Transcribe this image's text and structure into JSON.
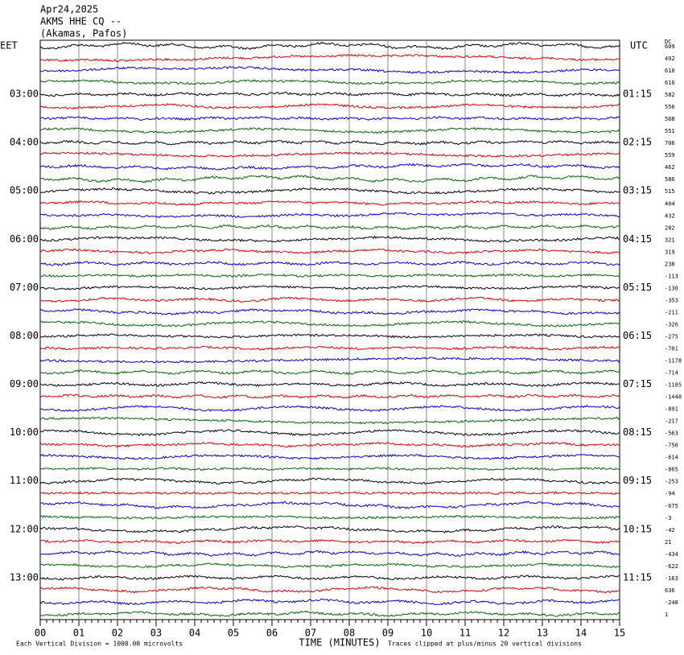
{
  "header": {
    "date": "Apr24,2025",
    "station": "AKMS HHE CQ --",
    "location": "(Akamas, Pafos)"
  },
  "left_axis": {
    "title": "EET",
    "labels": [
      "03:00",
      "04:00",
      "05:00",
      "06:00",
      "07:00",
      "08:00",
      "09:00",
      "10:00",
      "11:00",
      "12:00",
      "13:00"
    ]
  },
  "right_axis": {
    "title": "UTC",
    "labels": [
      "01:15",
      "02:15",
      "03:15",
      "04:15",
      "05:15",
      "06:15",
      "07:15",
      "08:15",
      "09:15",
      "10:15",
      "11:15"
    ]
  },
  "offsets": {
    "title": "DC",
    "values": [
      609,
      492,
      610,
      616,
      582,
      556,
      508,
      551,
      706,
      559,
      462,
      586,
      515,
      404,
      432,
      282,
      321,
      319,
      238,
      -113,
      -130,
      -353,
      -211,
      -326,
      -275,
      -701,
      -1178,
      -714,
      -1185,
      -1448,
      -891,
      -217,
      -563,
      -750,
      -614,
      -865,
      -253,
      -94,
      -675,
      -3,
      -42,
      21,
      -434,
      -622,
      -163,
      636,
      -248,
      1
    ]
  },
  "x_axis": {
    "title": "TIME (MINUTES)",
    "labels": [
      "00",
      "01",
      "02",
      "03",
      "04",
      "05",
      "06",
      "07",
      "08",
      "09",
      "10",
      "11",
      "12",
      "13",
      "14",
      "15"
    ]
  },
  "footer": {
    "scale": "Each Vertical Division = 1000.00 microvolts",
    "clip": "Traces clipped at plus/minus 20 vertical divisions"
  }
}
